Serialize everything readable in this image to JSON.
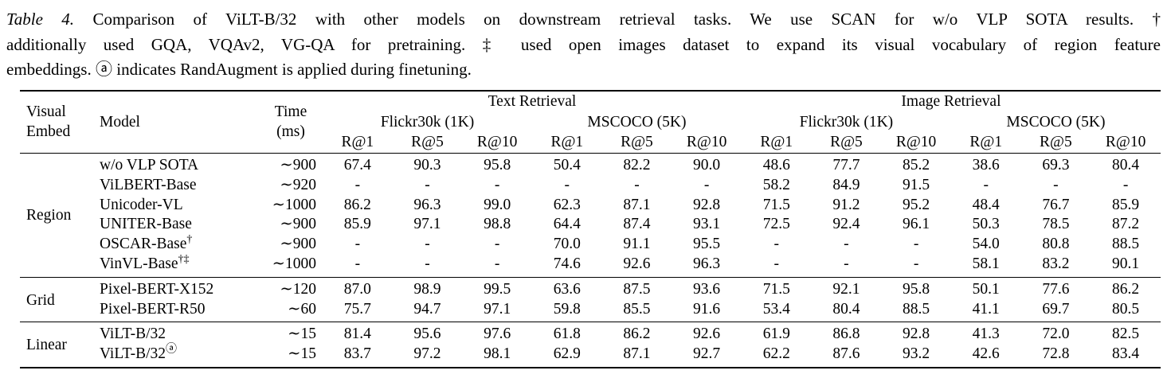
{
  "caption": {
    "tag": "Table 4.",
    "line1": "Comparison of ViLT-B/32 with other models on downstream retrieval tasks. We use SCAN for w/o VLP SOTA results. †",
    "line2": "additionally used GQA, VQAv2, VG-QA for pretraining. ‡ used open images dataset to expand its visual vocabulary of region feature",
    "line3": "embeddings. ⓐ indicates RandAugment is applied during finetuning."
  },
  "table": {
    "header": {
      "visual_embed": "Visual\nEmbed",
      "model": "Model",
      "time": "Time\n(ms)",
      "text_retrieval": "Text Retrieval",
      "image_retrieval": "Image Retrieval",
      "flickr": "Flickr30k (1K)",
      "mscoco": "MSCOCO (5K)",
      "rk": [
        "R@1",
        "R@5",
        "R@10"
      ]
    },
    "groups": [
      {
        "label": "Region",
        "rows": [
          {
            "model": "w/o VLP SOTA",
            "sup": "",
            "time": "∼900",
            "values": [
              "67.4",
              "90.3",
              "95.8",
              "50.4",
              "82.2",
              "90.0",
              "48.6",
              "77.7",
              "85.2",
              "38.6",
              "69.3",
              "80.4"
            ]
          },
          {
            "model": "ViLBERT-Base",
            "sup": "",
            "time": "∼920",
            "values": [
              "-",
              "-",
              "-",
              "-",
              "-",
              "-",
              "58.2",
              "84.9",
              "91.5",
              "-",
              "-",
              "-"
            ]
          },
          {
            "model": "Unicoder-VL",
            "sup": "",
            "time": "∼1000",
            "values": [
              "86.2",
              "96.3",
              "99.0",
              "62.3",
              "87.1",
              "92.8",
              "71.5",
              "91.2",
              "95.2",
              "48.4",
              "76.7",
              "85.9"
            ]
          },
          {
            "model": "UNITER-Base",
            "sup": "",
            "time": "∼900",
            "values": [
              "85.9",
              "97.1",
              "98.8",
              "64.4",
              "87.4",
              "93.1",
              "72.5",
              "92.4",
              "96.1",
              "50.3",
              "78.5",
              "87.2"
            ]
          },
          {
            "model": "OSCAR-Base",
            "sup": "†",
            "time": "∼900",
            "values": [
              "-",
              "-",
              "-",
              "70.0",
              "91.1",
              "95.5",
              "-",
              "-",
              "-",
              "54.0",
              "80.8",
              "88.5"
            ]
          },
          {
            "model": "VinVL-Base",
            "sup": "†‡",
            "time": "∼1000",
            "values": [
              "-",
              "-",
              "-",
              "74.6",
              "92.6",
              "96.3",
              "-",
              "-",
              "-",
              "58.1",
              "83.2",
              "90.1"
            ]
          }
        ]
      },
      {
        "label": "Grid",
        "rows": [
          {
            "model": "Pixel-BERT-X152",
            "sup": "",
            "time": "∼120",
            "values": [
              "87.0",
              "98.9",
              "99.5",
              "63.6",
              "87.5",
              "93.6",
              "71.5",
              "92.1",
              "95.8",
              "50.1",
              "77.6",
              "86.2"
            ]
          },
          {
            "model": "Pixel-BERT-R50",
            "sup": "",
            "time": "∼60",
            "values": [
              "75.7",
              "94.7",
              "97.1",
              "59.8",
              "85.5",
              "91.6",
              "53.4",
              "80.4",
              "88.5",
              "41.1",
              "69.7",
              "80.5"
            ]
          }
        ]
      },
      {
        "label": "Linear",
        "rows": [
          {
            "model": "ViLT-B/32",
            "sup": "",
            "time": "∼15",
            "values": [
              "81.4",
              "95.6",
              "97.6",
              "61.8",
              "86.2",
              "92.6",
              "61.9",
              "86.8",
              "92.8",
              "41.3",
              "72.0",
              "82.5"
            ]
          },
          {
            "model": "ViLT-B/32",
            "sup": "ⓐ",
            "time": "∼15",
            "values": [
              "83.7",
              "97.2",
              "98.1",
              "62.9",
              "87.1",
              "92.7",
              "62.2",
              "87.6",
              "93.2",
              "42.6",
              "72.8",
              "83.4"
            ]
          }
        ]
      }
    ]
  }
}
